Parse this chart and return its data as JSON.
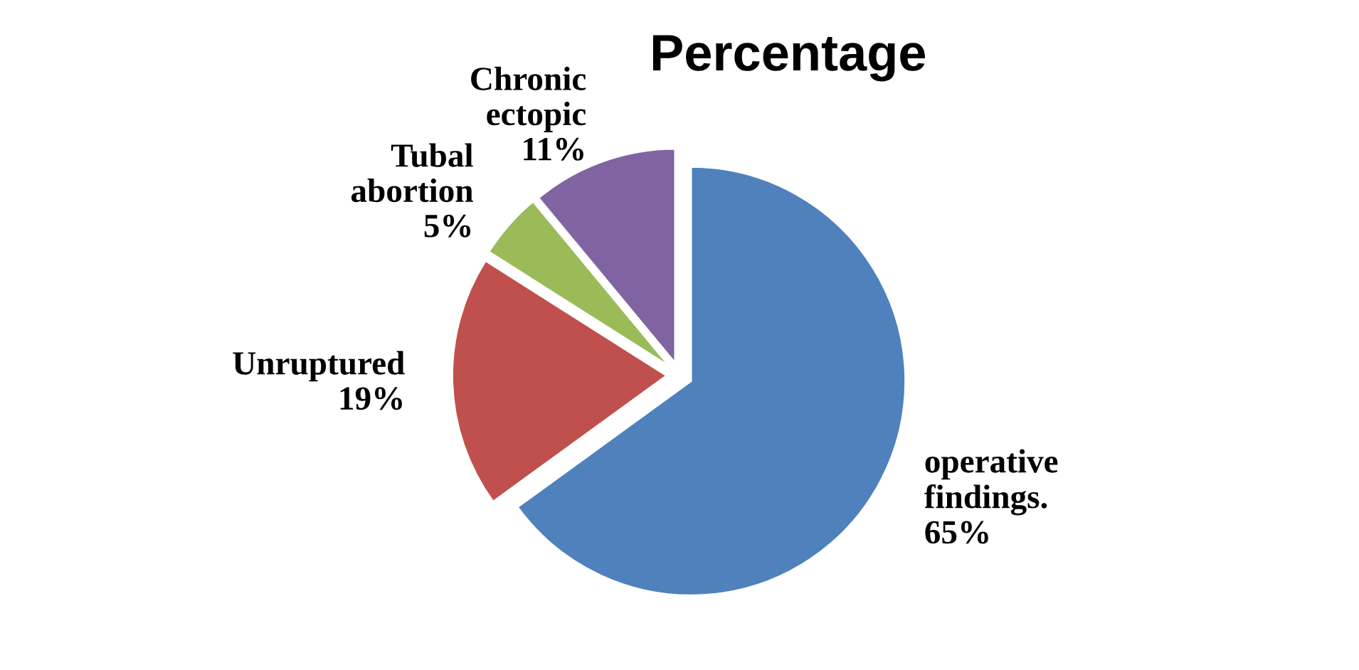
{
  "chart_data": {
    "type": "pie",
    "title": "Percentage",
    "categories": [
      "operative findings.",
      "Unruptured",
      "Tubal abortion",
      "Chronic ectopic"
    ],
    "values": [
      65,
      19,
      5,
      11
    ],
    "value_labels": [
      "65%",
      "19%",
      "5%",
      "11%"
    ],
    "colors": [
      "#4f81bd",
      "#c0504d",
      "#9bbb59",
      "#8064a2"
    ]
  }
}
